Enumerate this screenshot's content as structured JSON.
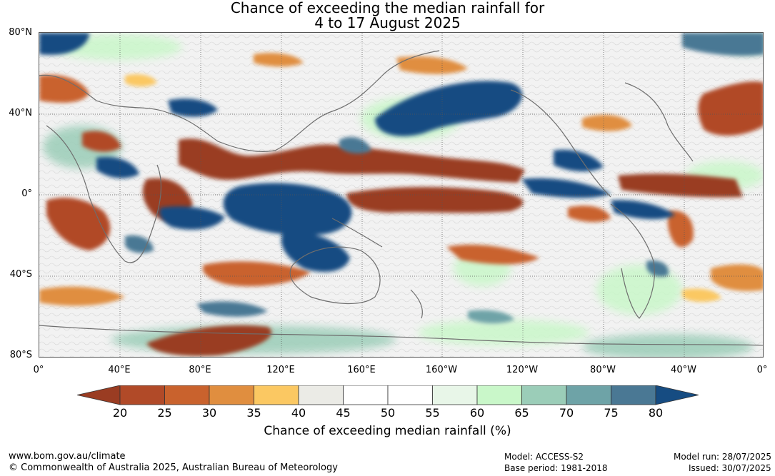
{
  "title_line1": "Chance of exceeding the median rainfall for",
  "title_line2": "4 to 17 August 2025",
  "lat_labels": [
    "80°N",
    "40°N",
    "0°",
    "40°S",
    "80°S"
  ],
  "lon_labels": [
    "0°",
    "40°E",
    "80°E",
    "120°E",
    "160°E",
    "160°W",
    "120°W",
    "80°W",
    "40°W",
    "0°"
  ],
  "colorbar": {
    "ticks": [
      "20",
      "25",
      "30",
      "35",
      "40",
      "45",
      "50",
      "55",
      "60",
      "65",
      "70",
      "75",
      "80"
    ],
    "label": "Chance of exceeding median rainfall (%)",
    "colors": [
      "#9a3c22",
      "#b14a28",
      "#c9622d",
      "#e08e3f",
      "#fbc862",
      "#ebebe6",
      "#ffffff",
      "#ffffff",
      "#e8f6e8",
      "#c9f7c9",
      "#9bcdb8",
      "#6ea3a7",
      "#4a7894",
      "#164c82"
    ]
  },
  "footer": {
    "url": "www.bom.gov.au/climate",
    "copyright": "© Commonwealth of Australia 2025, Australian Bureau of Meteorology",
    "model": "Model: ACCESS-S2",
    "base_period": "Base period: 1981-2018",
    "model_run": "Model run: 28/07/2025",
    "issued": "Issued: 30/07/2025"
  }
}
